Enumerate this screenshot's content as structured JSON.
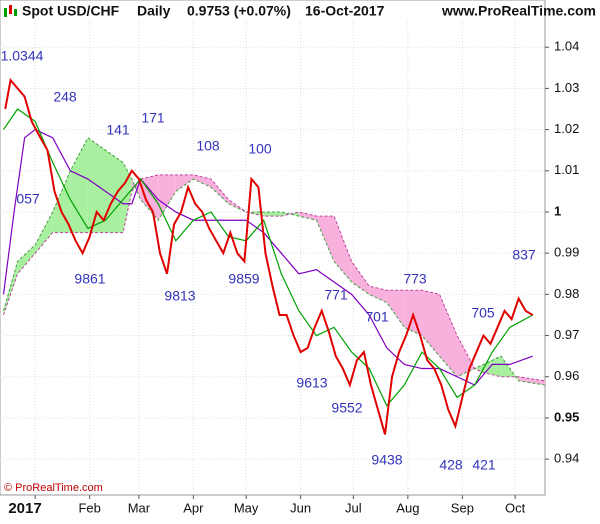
{
  "header": {
    "instrument": "Spot USD/CHF",
    "period": "Daily",
    "quote": "0.9753 (+0.07%)",
    "date": "16-Oct-2017",
    "source": "www.ProRealTime.com"
  },
  "footer": "© ProRealTime.com",
  "chart_data": {
    "type": "line",
    "xlim": [
      -20,
      290
    ],
    "xticks": [
      {
        "value": 0,
        "label": "2017"
      },
      {
        "value": 31,
        "label": "Feb"
      },
      {
        "value": 59,
        "label": "Mar"
      },
      {
        "value": 90,
        "label": "Apr"
      },
      {
        "value": 120,
        "label": "May"
      },
      {
        "value": 151,
        "label": "Jun"
      },
      {
        "value": 181,
        "label": "Jul"
      },
      {
        "value": 212,
        "label": "Aug"
      },
      {
        "value": 243,
        "label": "Sep"
      },
      {
        "value": 273,
        "label": "Oct"
      }
    ],
    "ylim": [
      0.9313,
      1.0466
    ],
    "yticks": [
      1.04,
      1.03,
      1.02,
      1.01,
      1,
      0.99,
      0.98,
      0.97,
      0.96,
      0.95,
      0.94
    ],
    "grid": true,
    "cloud": {
      "colors": [
        "#a8f0a0",
        "#f8b0dc"
      ],
      "x": [
        -18,
        -10,
        0,
        10,
        20,
        30,
        40,
        50,
        55,
        60,
        70,
        80,
        90,
        100,
        110,
        120,
        130,
        140,
        150,
        160,
        170,
        180,
        190,
        200,
        210,
        220,
        230,
        240,
        250,
        255,
        265,
        275,
        290
      ],
      "span_a": [
        0.976,
        0.988,
        0.992,
        1.0,
        1.01,
        1.018,
        1.015,
        1.012,
        1.008,
        1.003,
        0.998,
        1.005,
        1.008,
        1.006,
        1.002,
        1.0,
        1.0,
        1.0,
        0.999,
        0.998,
        0.988,
        0.983,
        0.98,
        0.978,
        0.972,
        0.97,
        0.965,
        0.96,
        0.962,
        0.963,
        0.965,
        0.959,
        0.958
      ],
      "span_b": [
        0.975,
        0.985,
        0.99,
        0.995,
        0.995,
        0.995,
        0.995,
        0.995,
        1.005,
        1.008,
        1.009,
        1.009,
        1.009,
        1.008,
        1.003,
        1.0,
        0.999,
        0.999,
        1.0,
        0.999,
        0.999,
        0.988,
        0.982,
        0.981,
        0.981,
        0.981,
        0.98,
        0.97,
        0.962,
        0.961,
        0.96,
        0.96,
        0.959
      ]
    },
    "series": [
      {
        "color": "#8000c0",
        "x": [
          -18,
          -12,
          -6,
          0,
          10,
          20,
          30,
          40,
          50,
          55,
          60,
          70,
          80,
          90,
          100,
          110,
          120,
          130,
          140,
          150,
          160,
          170,
          180,
          190,
          200,
          210,
          220,
          230,
          240,
          250,
          260,
          270,
          283
        ],
        "values": [
          0.98,
          1.0,
          1.018,
          1.02,
          1.018,
          1.01,
          1.008,
          1.005,
          1.002,
          1.002,
          1.008,
          1.003,
          1.0,
          0.998,
          0.998,
          0.998,
          0.998,
          0.995,
          0.99,
          0.985,
          0.986,
          0.983,
          0.98,
          0.975,
          0.967,
          0.963,
          0.962,
          0.962,
          0.96,
          0.958,
          0.963,
          0.963,
          0.965
        ]
      },
      {
        "color": "#00a000",
        "x": [
          -18,
          -10,
          0,
          10,
          20,
          30,
          40,
          50,
          60,
          70,
          80,
          90,
          100,
          110,
          120,
          130,
          140,
          150,
          160,
          170,
          180,
          190,
          200,
          210,
          220,
          230,
          240,
          250,
          260,
          270,
          283
        ],
        "values": [
          1.02,
          1.025,
          1.022,
          1.012,
          1.003,
          0.996,
          0.998,
          1.003,
          1.008,
          1.002,
          0.993,
          0.998,
          1.0,
          0.994,
          0.993,
          0.998,
          0.985,
          0.976,
          0.97,
          0.972,
          0.966,
          0.962,
          0.953,
          0.958,
          0.966,
          0.962,
          0.955,
          0.958,
          0.966,
          0.972,
          0.975
        ]
      },
      {
        "color": "#e00000",
        "x": [
          -17,
          -14,
          -10,
          -6,
          -2,
          3,
          7,
          11,
          15,
          19,
          23,
          27,
          31,
          35,
          39,
          43,
          47,
          51,
          55,
          59,
          63,
          67,
          71,
          75,
          79,
          83,
          87,
          91,
          95,
          99,
          103,
          107,
          111,
          115,
          119,
          123,
          127,
          131,
          135,
          139,
          143,
          147,
          151,
          155,
          159,
          163,
          167,
          171,
          175,
          179,
          183,
          187,
          191,
          195,
          199,
          203,
          207,
          211,
          215,
          219,
          223,
          227,
          231,
          235,
          239,
          243,
          247,
          251,
          255,
          259,
          263,
          267,
          271,
          275,
          279,
          283
        ],
        "values": [
          1.025,
          1.032,
          1.03,
          1.028,
          1.022,
          1.018,
          1.015,
          1.005,
          1.0,
          0.997,
          0.993,
          0.99,
          0.994,
          1.0,
          0.998,
          1.002,
          1.005,
          1.007,
          1.01,
          1.008,
          1.003,
          1.0,
          0.99,
          0.985,
          0.997,
          1.0,
          1.006,
          1.002,
          1.0,
          0.996,
          0.993,
          0.99,
          0.995,
          0.99,
          0.988,
          1.008,
          1.006,
          0.99,
          0.982,
          0.975,
          0.975,
          0.97,
          0.966,
          0.967,
          0.972,
          0.976,
          0.971,
          0.965,
          0.962,
          0.958,
          0.964,
          0.966,
          0.958,
          0.952,
          0.946,
          0.96,
          0.966,
          0.97,
          0.975,
          0.97,
          0.964,
          0.962,
          0.958,
          0.952,
          0.948,
          0.955,
          0.962,
          0.966,
          0.97,
          0.968,
          0.972,
          0.976,
          0.974,
          0.979,
          0.976,
          0.975
        ]
      }
    ],
    "annotations": [
      "1.0344",
      "248",
      "141",
      "171",
      "108",
      "100",
      "057",
      "9861",
      "9813",
      "9859",
      "771",
      "701",
      "773",
      "705",
      "837",
      "9613",
      "9552",
      "9438",
      "428",
      "421"
    ]
  }
}
